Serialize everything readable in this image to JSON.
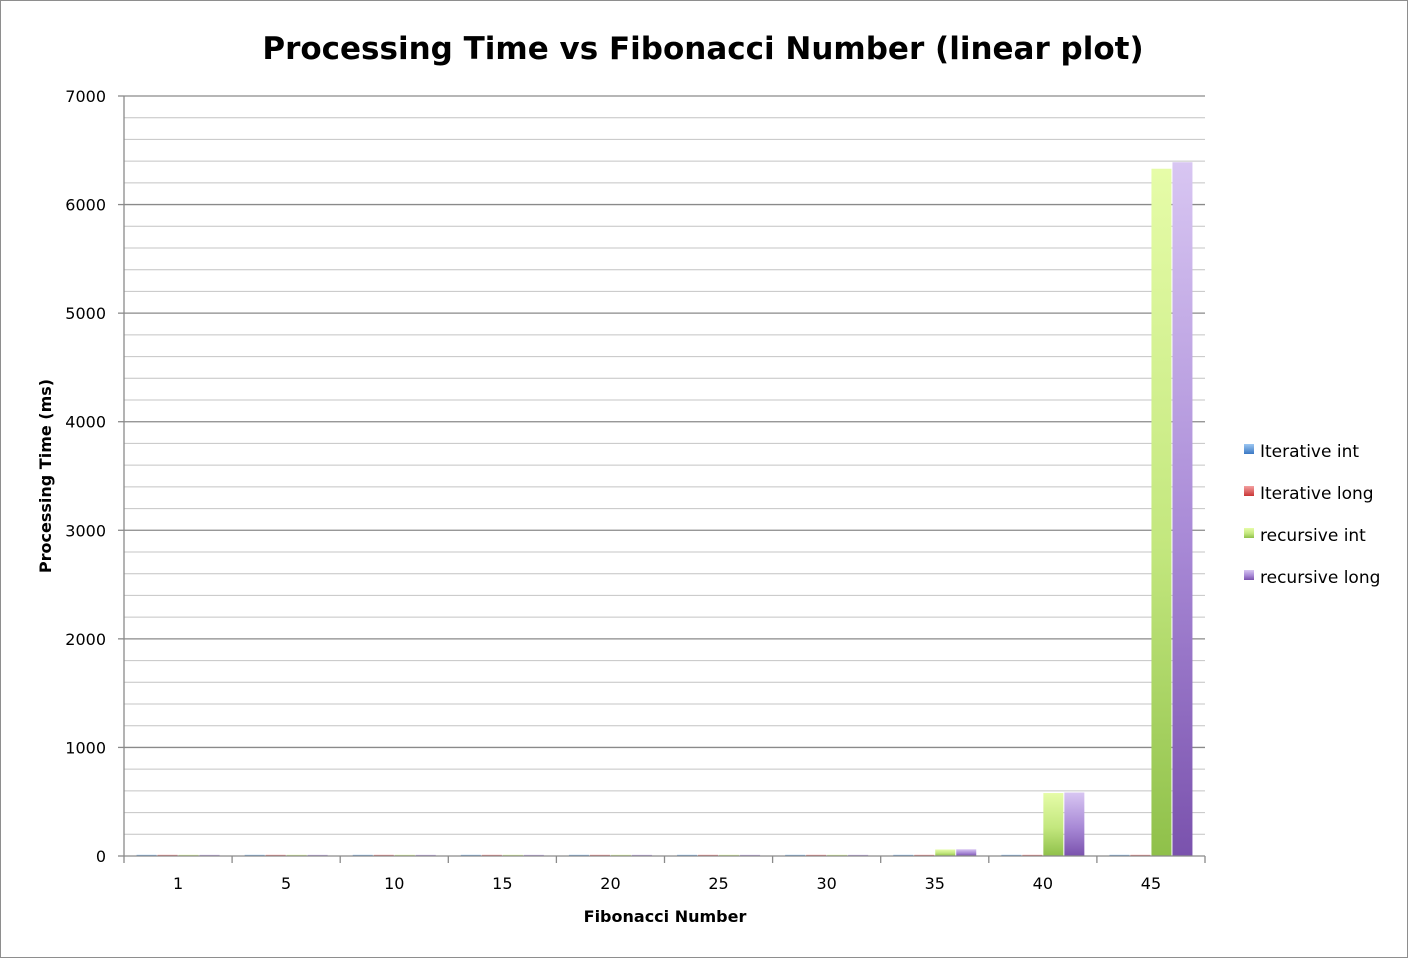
{
  "chart_data": {
    "type": "bar",
    "title": "Processing Time vs Fibonacci Number (linear plot)",
    "xlabel": "Fibonacci Number",
    "ylabel": "Processing Time (ms)",
    "categories": [
      "1",
      "5",
      "10",
      "15",
      "20",
      "25",
      "30",
      "35",
      "40",
      "45"
    ],
    "ylim": [
      0,
      7000
    ],
    "ytick_step": 1000,
    "minor_grid_step": 200,
    "yticks": [
      "0",
      "1000",
      "2000",
      "3000",
      "4000",
      "5000",
      "6000",
      "7000"
    ],
    "grid": true,
    "legend_position": "right",
    "series": [
      {
        "name": "Iterative int",
        "color": "#4a90d9",
        "values": [
          0,
          0,
          0,
          0,
          0,
          0,
          0,
          0,
          0,
          0
        ]
      },
      {
        "name": "Iterative long",
        "color": "#e04848",
        "values": [
          0,
          0,
          0,
          0,
          0,
          0,
          0,
          0,
          0,
          0
        ]
      },
      {
        "name": "recursive int",
        "color": "#9ccd4a",
        "values": [
          0,
          0,
          0,
          0,
          1,
          2,
          6,
          60,
          580,
          6330
        ]
      },
      {
        "name": "recursive long",
        "color": "#9b72c8",
        "values": [
          0,
          0,
          0,
          0,
          1,
          2,
          6,
          62,
          585,
          6390
        ]
      }
    ]
  }
}
